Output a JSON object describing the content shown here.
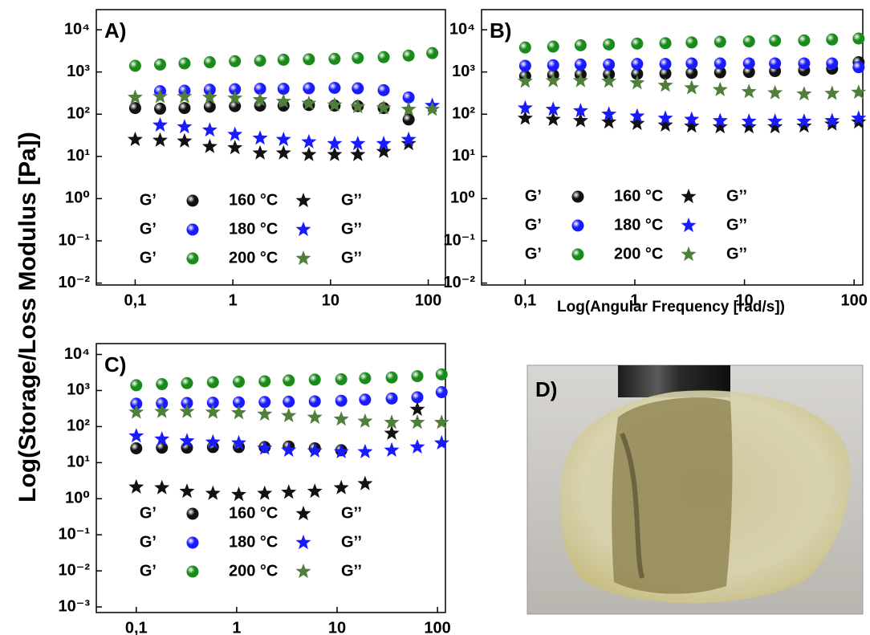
{
  "figure": {
    "y_label": "Log(Storage/Loss Modulus [Pa])",
    "x_label": "Log(Angular Frequency [rad/s])",
    "photo_label": "D)"
  },
  "chart_data": [
    {
      "type": "scatter",
      "panel_label": "A)",
      "xscale": "log",
      "yscale": "log",
      "xlim": [
        0.04,
        150
      ],
      "ylim": [
        0.009,
        30000
      ],
      "xticks": [
        {
          "value": 0.1,
          "label": "0,1"
        },
        1,
        10,
        100
      ],
      "yticks": [
        {
          "value": 0.01,
          "label": "10⁻²"
        },
        {
          "value": 0.1,
          "label": "10⁻¹"
        },
        {
          "value": 1,
          "label": "10⁰"
        },
        {
          "value": 10,
          "label": "10¹"
        },
        {
          "value": 100,
          "label": "10²"
        },
        {
          "value": 1000,
          "label": "10³"
        },
        {
          "value": 10000,
          "label": "10⁴"
        }
      ],
      "x": [
        0.1,
        0.18,
        0.32,
        0.58,
        1.05,
        1.9,
        3.3,
        6,
        11,
        19,
        35,
        63,
        110
      ],
      "groups": [
        {
          "label": "160 °C",
          "color": "#111111",
          "series": [
            {
              "name": "G’",
              "marker": "circle",
              "color": "#111111",
              "values": [
                140,
                135,
                140,
                150,
                155,
                160,
                160,
                165,
                160,
                155,
                140,
                75,
                null
              ]
            },
            {
              "name": "G’’",
              "marker": "star",
              "color": "#111111",
              "values": [
                25,
                24,
                23,
                17,
                16,
                12,
                12,
                11,
                11,
                11,
                13,
                20,
                null
              ]
            }
          ]
        },
        {
          "label": "180 °C",
          "color": "#1a1aff",
          "series": [
            {
              "name": "G’",
              "marker": "circle",
              "color": "#1a1aff",
              "values": [
                null,
                350,
                360,
                380,
                390,
                400,
                400,
                410,
                420,
                410,
                370,
                250,
                null
              ]
            },
            {
              "name": "G’’",
              "marker": "star",
              "color": "#1a1aff",
              "values": [
                null,
                55,
                50,
                42,
                33,
                27,
                25,
                22,
                20,
                20,
                20,
                25,
                160
              ]
            }
          ]
        },
        {
          "label": "200 °C",
          "color": "#1a8a1a",
          "series": [
            {
              "name": "G’",
              "marker": "circle",
              "color": "#1a8a1a",
              "values": [
                1400,
                1500,
                1600,
                1700,
                1800,
                1850,
                1950,
                2000,
                2050,
                2150,
                2250,
                2450,
                2800
              ]
            },
            {
              "name": "G’’",
              "marker": "star",
              "color": "#4f7f3a",
              "values": [
                250,
                260,
                260,
                250,
                240,
                220,
                200,
                180,
                165,
                150,
                140,
                130,
                130
              ]
            }
          ]
        }
      ]
    },
    {
      "type": "scatter",
      "panel_label": "B)",
      "xscale": "log",
      "yscale": "log",
      "xlim": [
        0.04,
        120
      ],
      "ylim": [
        0.009,
        30000
      ],
      "xticks": [
        {
          "value": 0.1,
          "label": "0,1"
        },
        1,
        10,
        100
      ],
      "yticks": [
        {
          "value": 0.01,
          "label": "10⁻²"
        },
        {
          "value": 0.1,
          "label": "10⁻¹"
        },
        {
          "value": 1,
          "label": "10⁰"
        },
        {
          "value": 10,
          "label": "10¹"
        },
        {
          "value": 100,
          "label": "10²"
        },
        {
          "value": 1000,
          "label": "10³"
        },
        {
          "value": 10000,
          "label": "10⁴"
        }
      ],
      "x": [
        0.1,
        0.18,
        0.32,
        0.58,
        1.05,
        1.9,
        3.3,
        6,
        11,
        19,
        35,
        63,
        110
      ],
      "groups": [
        {
          "label": "160 °C",
          "color": "#111111",
          "series": [
            {
              "name": "G’",
              "marker": "circle",
              "color": "#111111",
              "values": [
                800,
                850,
                870,
                880,
                900,
                920,
                950,
                980,
                1000,
                1050,
                1100,
                1200,
                1700
              ]
            },
            {
              "name": "G’’",
              "marker": "star",
              "color": "#111111",
              "values": [
                80,
                75,
                70,
                65,
                60,
                55,
                52,
                50,
                50,
                50,
                52,
                58,
                65
              ]
            }
          ]
        },
        {
          "label": "180 °C",
          "color": "#1a1aff",
          "series": [
            {
              "name": "G’",
              "marker": "circle",
              "color": "#1a1aff",
              "values": [
                1400,
                1450,
                1500,
                1500,
                1550,
                1550,
                1600,
                1600,
                1600,
                1600,
                1600,
                1600,
                1300
              ]
            },
            {
              "name": "G’’",
              "marker": "star",
              "color": "#1a1aff",
              "values": [
                140,
                130,
                120,
                100,
                90,
                80,
                75,
                70,
                68,
                68,
                68,
                70,
                80
              ]
            }
          ]
        },
        {
          "label": "200 °C",
          "color": "#1a8a1a",
          "series": [
            {
              "name": "G’",
              "marker": "circle",
              "color": "#1a8a1a",
              "values": [
                3800,
                4000,
                4300,
                4500,
                4700,
                4800,
                5000,
                5200,
                5300,
                5500,
                5600,
                5900,
                6200
              ]
            },
            {
              "name": "G’’",
              "marker": "star",
              "color": "#4f7f3a",
              "values": [
                600,
                620,
                620,
                600,
                550,
                480,
                420,
                380,
                340,
                320,
                300,
                310,
                330
              ]
            }
          ]
        }
      ]
    },
    {
      "type": "scatter",
      "panel_label": "C)",
      "xscale": "log",
      "yscale": "log",
      "xlim": [
        0.04,
        120
      ],
      "ylim": [
        0.0007,
        20000
      ],
      "xticks": [
        {
          "value": 0.1,
          "label": "0,1"
        },
        1,
        10,
        100
      ],
      "yticks": [
        {
          "value": 0.001,
          "label": "10⁻³"
        },
        {
          "value": 0.01,
          "label": "10⁻²"
        },
        {
          "value": 0.1,
          "label": "10⁻¹"
        },
        {
          "value": 1,
          "label": "10⁰"
        },
        {
          "value": 10,
          "label": "10¹"
        },
        {
          "value": 100,
          "label": "10²"
        },
        {
          "value": 1000,
          "label": "10³"
        },
        {
          "value": 10000,
          "label": "10⁴"
        }
      ],
      "x": [
        0.1,
        0.18,
        0.32,
        0.58,
        1.05,
        1.9,
        3.3,
        6,
        11,
        19,
        35,
        63,
        110
      ],
      "groups": [
        {
          "label": "160 °C",
          "color": "#111111",
          "series": [
            {
              "name": "G’",
              "marker": "circle",
              "color": "#111111",
              "values": [
                25,
                26,
                26,
                27,
                27,
                27,
                28,
                25,
                22,
                null,
                null,
                null,
                null
              ]
            },
            {
              "name": "G’’",
              "marker": "star",
              "color": "#111111",
              "values": [
                2.1,
                2.0,
                1.6,
                1.4,
                1.3,
                1.4,
                1.5,
                1.6,
                2.0,
                2.6,
                65,
                300,
                null
              ]
            }
          ]
        },
        {
          "label": "180 °C",
          "color": "#1a1aff",
          "series": [
            {
              "name": "G’",
              "marker": "circle",
              "color": "#1a1aff",
              "values": [
                430,
                440,
                450,
                460,
                470,
                480,
                490,
                500,
                520,
                560,
                600,
                650,
                900
              ]
            },
            {
              "name": "G’’",
              "marker": "star",
              "color": "#1a1aff",
              "values": [
                55,
                45,
                40,
                37,
                35,
                25,
                22,
                21,
                20,
                20,
                22,
                27,
                35
              ]
            }
          ]
        },
        {
          "label": "200 °C",
          "color": "#1a8a1a",
          "series": [
            {
              "name": "G’",
              "marker": "circle",
              "color": "#1a8a1a",
              "values": [
                1400,
                1500,
                1600,
                1700,
                1750,
                1800,
                1900,
                2000,
                2050,
                2200,
                2300,
                2500,
                2800
              ]
            },
            {
              "name": "G’’",
              "marker": "star",
              "color": "#4f7f3a",
              "values": [
                250,
                260,
                260,
                250,
                240,
                220,
                200,
                180,
                160,
                140,
                130,
                130,
                130
              ]
            }
          ]
        }
      ]
    }
  ]
}
